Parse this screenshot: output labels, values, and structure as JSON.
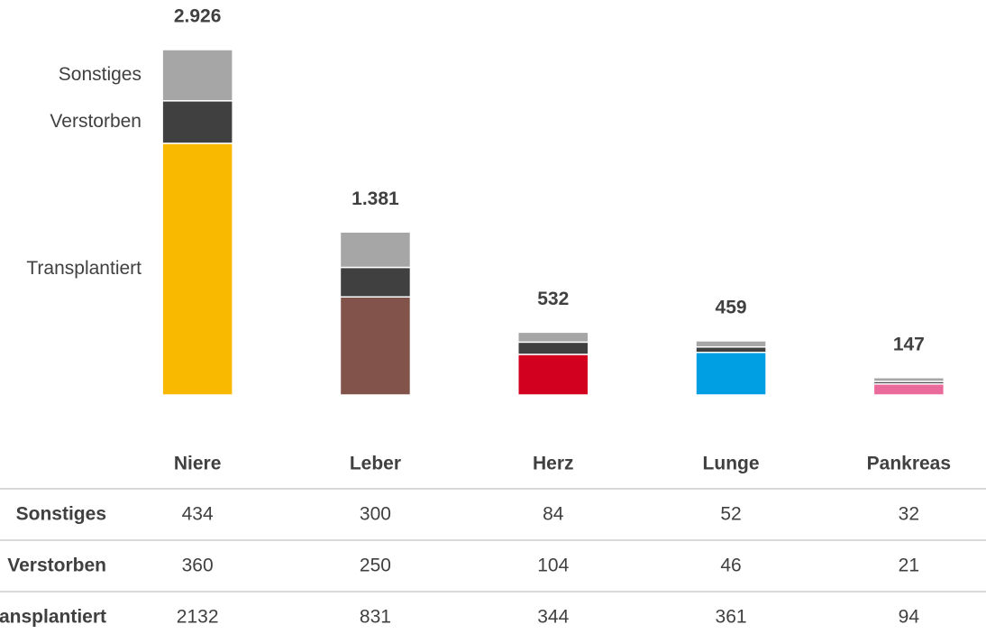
{
  "chart_data": {
    "type": "stacked_bar",
    "categories": [
      "Niere",
      "Leber",
      "Herz",
      "Lunge",
      "Pankreas"
    ],
    "series": [
      {
        "name": "Transplantiert",
        "colors": [
          "#f9b900",
          "#82534a",
          "#d2001e",
          "#009fe3",
          "#e96a9b"
        ],
        "values": [
          2132,
          831,
          344,
          361,
          94
        ]
      },
      {
        "name": "Verstorben",
        "color": "#404040",
        "values": [
          360,
          250,
          104,
          46,
          21
        ]
      },
      {
        "name": "Sonstiges",
        "color": "#a6a6a6",
        "values": [
          434,
          300,
          84,
          52,
          32
        ]
      }
    ],
    "totals": {
      "values": [
        2926,
        1381,
        532,
        459,
        147
      ],
      "value_labels": [
        "2.926",
        "1.381",
        "532",
        "459",
        "147"
      ]
    },
    "ylim": [
      0,
      3000
    ]
  }
}
